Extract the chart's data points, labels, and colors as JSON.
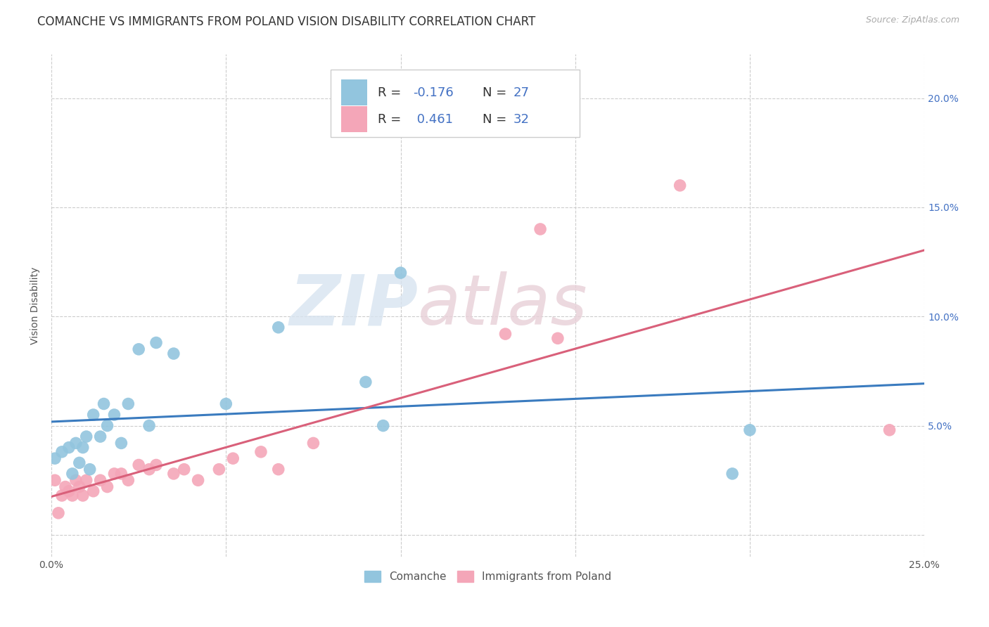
{
  "title": "COMANCHE VS IMMIGRANTS FROM POLAND VISION DISABILITY CORRELATION CHART",
  "source": "Source: ZipAtlas.com",
  "ylabel": "Vision Disability",
  "xlim": [
    0.0,
    0.25
  ],
  "ylim": [
    -0.01,
    0.22
  ],
  "xticks": [
    0.0,
    0.05,
    0.1,
    0.15,
    0.2,
    0.25
  ],
  "xticklabels": [
    "0.0%",
    "",
    "",
    "",
    "",
    "25.0%"
  ],
  "yticks": [
    0.0,
    0.05,
    0.1,
    0.15,
    0.2
  ],
  "yticklabels": [
    "",
    "5.0%",
    "10.0%",
    "15.0%",
    "20.0%"
  ],
  "blue_color": "#92c5de",
  "pink_color": "#f4a6b8",
  "blue_line_color": "#3a7bbf",
  "pink_line_color": "#d9607a",
  "comanche_x": [
    0.001,
    0.003,
    0.005,
    0.006,
    0.007,
    0.008,
    0.009,
    0.01,
    0.011,
    0.012,
    0.014,
    0.015,
    0.016,
    0.018,
    0.02,
    0.022,
    0.025,
    0.028,
    0.03,
    0.035,
    0.05,
    0.065,
    0.09,
    0.095,
    0.1,
    0.195,
    0.2
  ],
  "comanche_y": [
    0.035,
    0.038,
    0.04,
    0.028,
    0.042,
    0.033,
    0.04,
    0.045,
    0.03,
    0.055,
    0.045,
    0.06,
    0.05,
    0.055,
    0.042,
    0.06,
    0.085,
    0.05,
    0.088,
    0.083,
    0.06,
    0.095,
    0.07,
    0.05,
    0.12,
    0.028,
    0.048
  ],
  "poland_x": [
    0.001,
    0.002,
    0.003,
    0.004,
    0.005,
    0.006,
    0.007,
    0.008,
    0.009,
    0.01,
    0.012,
    0.014,
    0.016,
    0.018,
    0.02,
    0.022,
    0.025,
    0.028,
    0.03,
    0.035,
    0.038,
    0.042,
    0.048,
    0.052,
    0.06,
    0.065,
    0.075,
    0.13,
    0.14,
    0.145,
    0.18,
    0.24
  ],
  "poland_y": [
    0.025,
    0.01,
    0.018,
    0.022,
    0.02,
    0.018,
    0.025,
    0.022,
    0.018,
    0.025,
    0.02,
    0.025,
    0.022,
    0.028,
    0.028,
    0.025,
    0.032,
    0.03,
    0.032,
    0.028,
    0.03,
    0.025,
    0.03,
    0.035,
    0.038,
    0.03,
    0.042,
    0.092,
    0.14,
    0.09,
    0.16,
    0.048
  ],
  "background_color": "#ffffff",
  "grid_color": "#cccccc",
  "watermark_zip": "ZIP",
  "watermark_atlas": "atlas",
  "title_fontsize": 12,
  "axis_label_fontsize": 10,
  "tick_fontsize": 10,
  "legend_text_color": "#4472c4",
  "legend_label_color": "#333333"
}
